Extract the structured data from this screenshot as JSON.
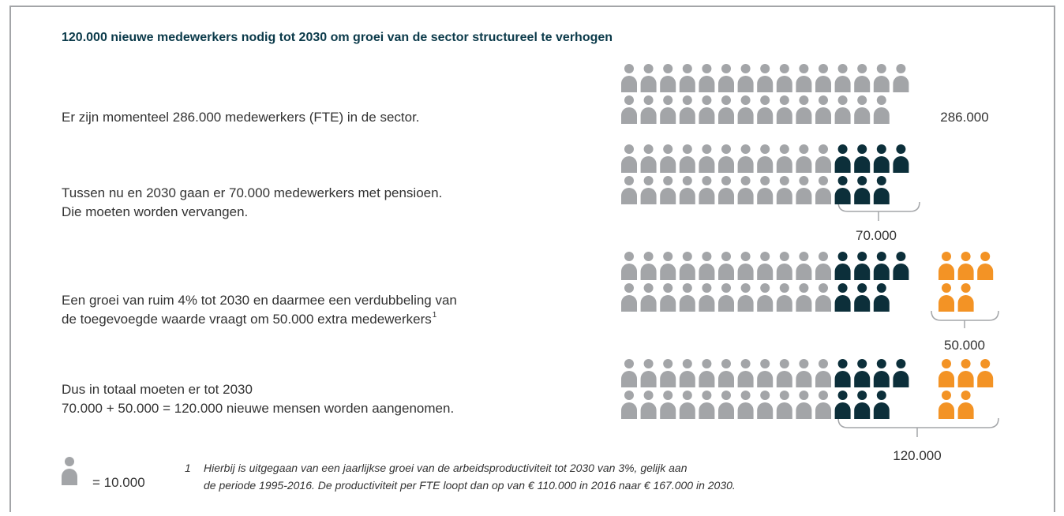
{
  "title": "120.000 nieuwe medewerkers nodig tot 2030 om groei van de sector structureel te verhogen",
  "rows": [
    {
      "lines": [
        "Er zijn momenteel 286.000 medewerkers (FTE) in de sector."
      ],
      "figure": "286.000"
    },
    {
      "lines": [
        "Tussen nu en 2030 gaan er 70.000 medewerkers met pensioen.",
        "Die moeten worden vervangen."
      ],
      "figure": "70.000"
    },
    {
      "lines": [
        "Een groei van ruim 4% tot 2030 en daarmee een verdubbeling van",
        "de toegevoegde waarde vraagt om 50.000 extra medewerkers"
      ],
      "footnote_ref": "1",
      "figure": "50.000"
    },
    {
      "lines": [
        "Dus in totaal moeten er tot 2030",
        "70.000 + 50.000 = 120.000 nieuwe mensen worden aangenomen."
      ],
      "figure": "120.000"
    }
  ],
  "legend": "= 10.000",
  "footnote": {
    "number": "1",
    "lines": [
      "Hierbij is uitgegaan van een jaarlijkse groei van de arbeidsproductiviteit tot 2030 van 3%, gelijk aan",
      "de periode 1995-2016. De productiviteit per FTE loopt dan op van € 110.000 in 2016 naar € 167.000 in 2030."
    ]
  }
}
